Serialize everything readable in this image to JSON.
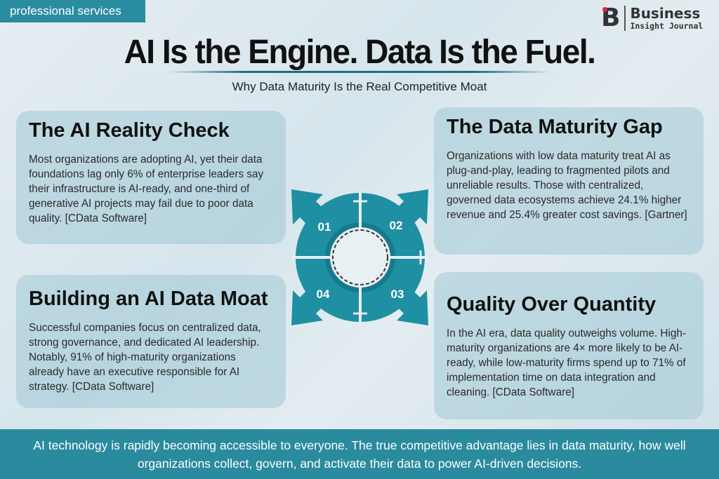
{
  "tag": "professional services",
  "logo": {
    "mark": "B",
    "line1": "Business",
    "line2": "Insight Journal"
  },
  "title": "AI Is the Engine. Data Is the Fuel.",
  "subtitle": "Why Data Maturity Is the Real Competitive Moat",
  "diagram": {
    "labels": [
      "01",
      "02",
      "03",
      "04"
    ],
    "color": "#1f8fa3"
  },
  "cards": [
    {
      "title": "The AI Reality Check",
      "body": "Most organizations are adopting AI, yet their data foundations lag only 6% of enterprise leaders say their infrastructure is AI-ready, and one-third of generative AI projects may fail due to poor data quality. [CData Software]"
    },
    {
      "title": "The Data Maturity Gap",
      "body": "Organizations with low data maturity treat AI as plug-and-play, leading to fragmented pilots and unreliable results. Those with centralized, governed data ecosystems achieve 24.1% higher revenue and 25.4% greater cost savings. [Gartner]"
    },
    {
      "title": "Building an AI Data Moat",
      "body": "Successful companies focus on centralized data, strong governance, and dedicated AI leadership. Notably, 91% of high-maturity organizations already have an executive responsible for AI strategy. [CData Software]"
    },
    {
      "title": "Quality Over Quantity",
      "body": "In the AI era, data quality outweighs volume. High-maturity organizations are 4× more likely to be AI-ready, while low-maturity firms spend up to 71% of implementation time on data integration and cleaning. [CData Software]"
    }
  ],
  "footer": "AI technology is rapidly becoming accessible to everyone. The true competitive advantage lies in data maturity, how well organizations collect, govern, and activate their data to power AI-driven decisions."
}
